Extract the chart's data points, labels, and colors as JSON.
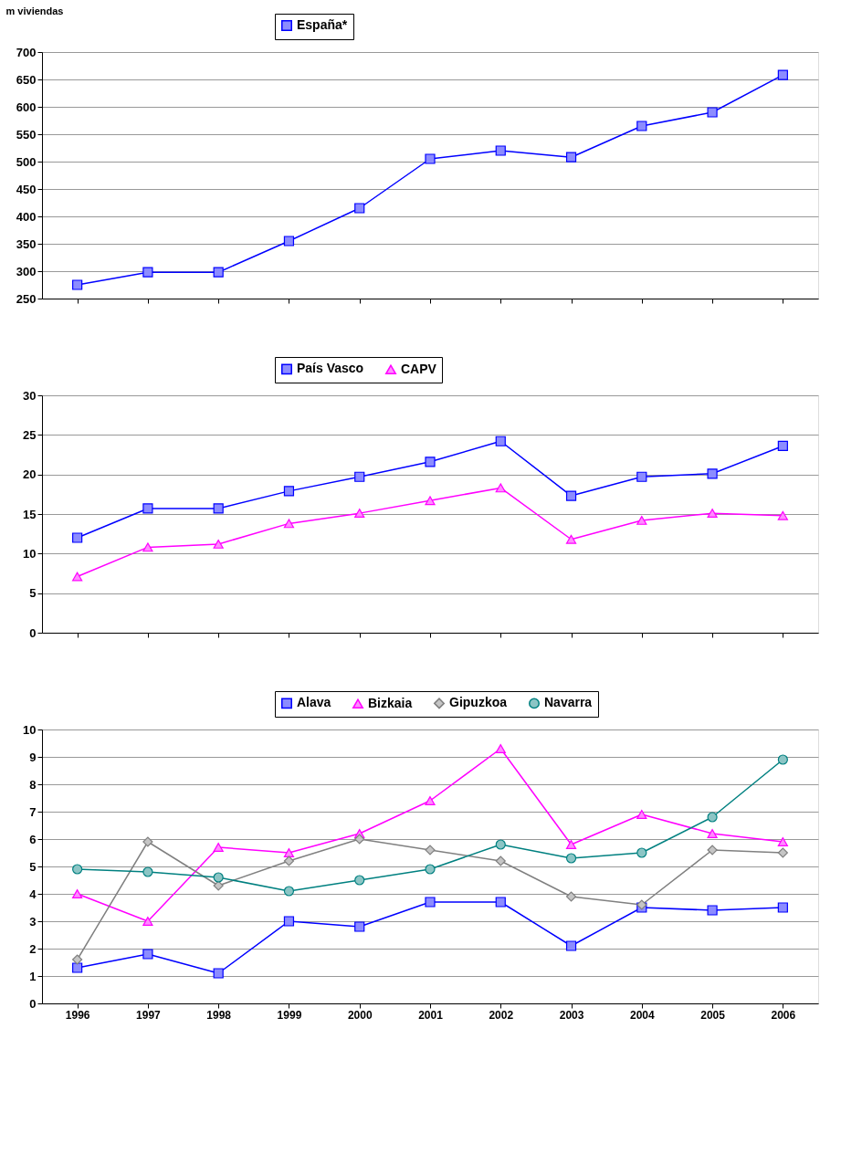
{
  "chart_data": [
    {
      "type": "line",
      "ylabel": "m viviendas",
      "categories": [
        "1996",
        "1997",
        "1998",
        "1999",
        "2000",
        "2001",
        "2002",
        "2003",
        "2004",
        "2005",
        "2006"
      ],
      "ylim": [
        250,
        700
      ],
      "yticks": [
        250,
        300,
        350,
        400,
        450,
        500,
        550,
        600,
        650,
        700
      ],
      "grid": "y",
      "legend": "top",
      "tick_labels": "y",
      "line_style": "solid",
      "series": [
        {
          "name": "España*",
          "color": "#0000ff",
          "marker": "square",
          "values": [
            275,
            298,
            298,
            355,
            415,
            505,
            520,
            508,
            565,
            590,
            658
          ]
        }
      ]
    },
    {
      "type": "line",
      "categories": [
        "1996",
        "1997",
        "1998",
        "1999",
        "2000",
        "2001",
        "2002",
        "2003",
        "2004",
        "2005",
        "2006"
      ],
      "ylim": [
        0,
        30
      ],
      "yticks": [
        0,
        5,
        10,
        15,
        20,
        25,
        30
      ],
      "grid": "y",
      "legend": "top",
      "tick_labels": "y",
      "line_style": "solid",
      "series": [
        {
          "name": "País Vasco",
          "color": "#0000ff",
          "marker": "square",
          "values": [
            12.0,
            15.7,
            15.7,
            17.9,
            19.7,
            21.6,
            24.2,
            17.3,
            19.7,
            20.1,
            23.6
          ]
        },
        {
          "name": "CAPV",
          "color": "#ff00ff",
          "marker": "triangle",
          "values": [
            7.1,
            10.8,
            11.2,
            13.8,
            15.1,
            16.7,
            18.3,
            11.8,
            14.2,
            15.1,
            14.8
          ]
        }
      ]
    },
    {
      "type": "line",
      "categories": [
        "1996",
        "1997",
        "1998",
        "1999",
        "2000",
        "2001",
        "2002",
        "2003",
        "2004",
        "2005",
        "2006"
      ],
      "ylim": [
        0,
        10
      ],
      "yticks": [
        0,
        1,
        2,
        3,
        4,
        5,
        6,
        7,
        8,
        9,
        10
      ],
      "grid": "y",
      "legend": "top",
      "line_style": "solid",
      "series": [
        {
          "name": "Alava",
          "color": "#0000ff",
          "marker": "square",
          "values": [
            1.3,
            1.8,
            1.1,
            3.0,
            2.8,
            3.7,
            3.7,
            2.1,
            3.5,
            3.4,
            3.5
          ]
        },
        {
          "name": "Bizkaia",
          "color": "#ff00ff",
          "marker": "triangle",
          "values": [
            4.0,
            3.0,
            5.7,
            5.5,
            6.2,
            7.4,
            9.3,
            5.8,
            6.9,
            6.2,
            5.9
          ]
        },
        {
          "name": "Gipuzkoa",
          "color": "#808080",
          "marker": "diamond",
          "values": [
            1.6,
            5.9,
            4.3,
            5.2,
            6.0,
            5.6,
            5.2,
            3.9,
            3.6,
            5.6,
            5.5
          ]
        },
        {
          "name": "Navarra",
          "color": "#008080",
          "marker": "circle",
          "values": [
            4.9,
            4.8,
            4.6,
            4.1,
            4.5,
            4.9,
            5.8,
            5.3,
            5.5,
            6.8,
            8.9
          ]
        }
      ]
    }
  ]
}
